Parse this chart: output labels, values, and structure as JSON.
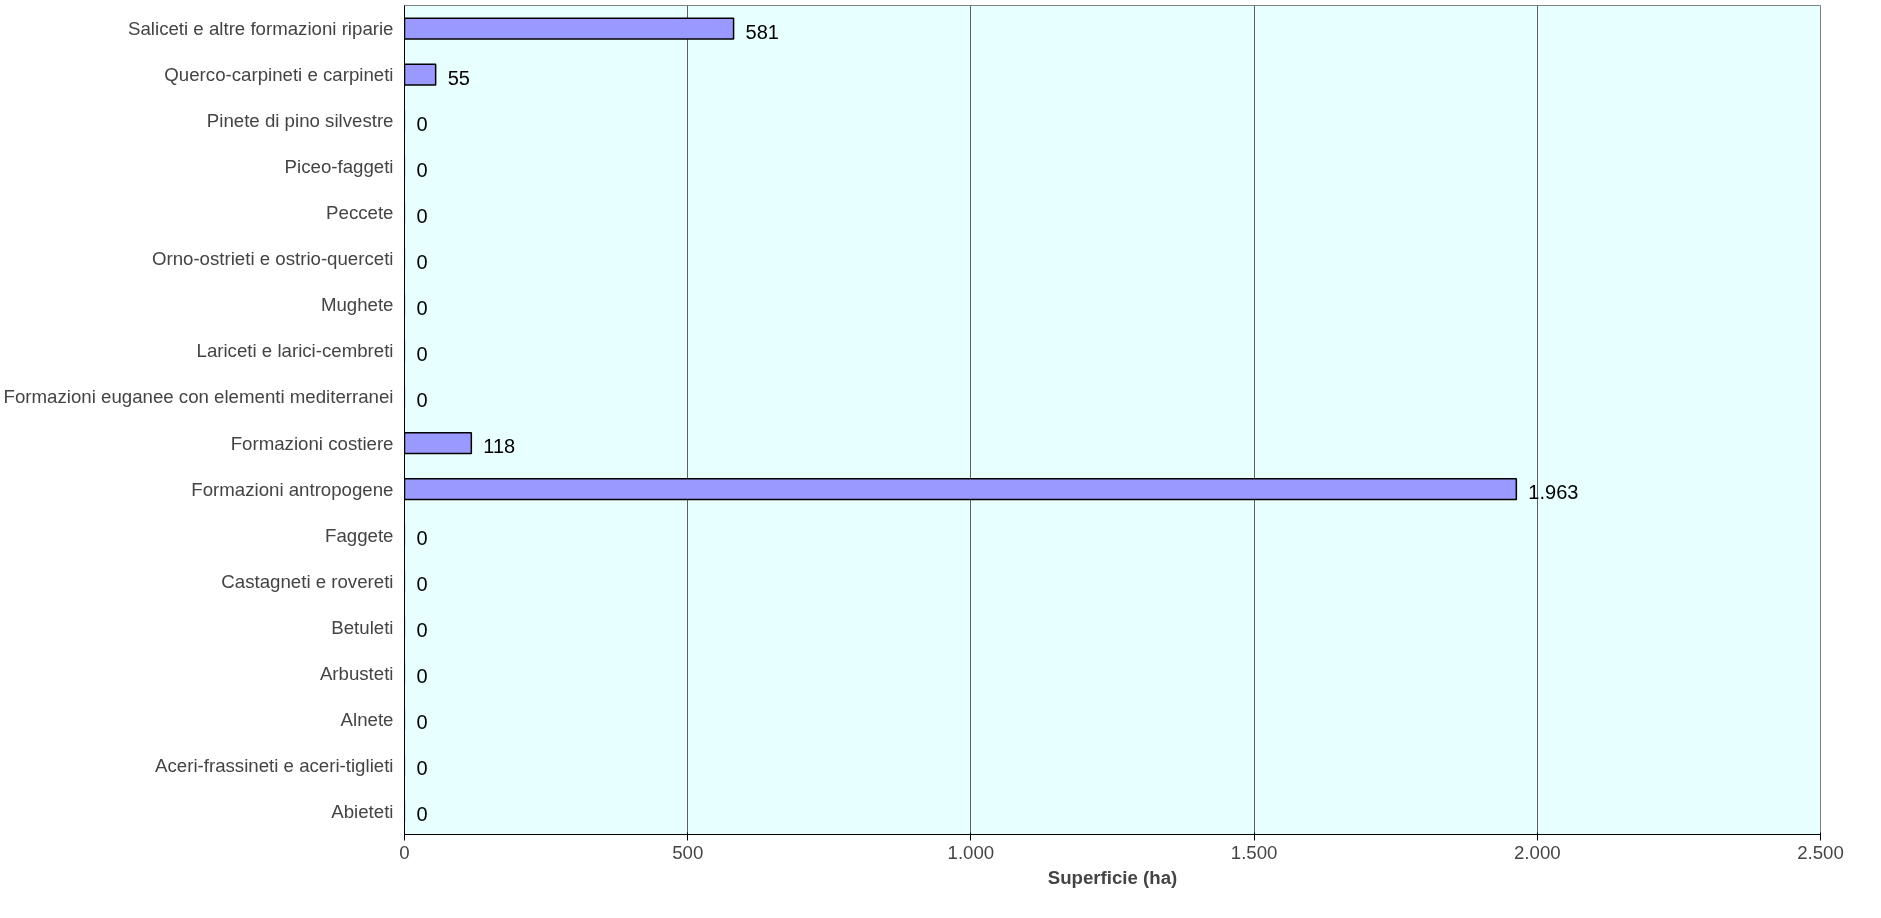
{
  "chart_data": {
    "type": "bar",
    "orientation": "horizontal",
    "xlabel": "Superficie (ha)",
    "categories": [
      "Saliceti e altre formazioni riparie",
      "Querco-carpineti e carpineti",
      "Pinete di pino silvestre",
      "Piceo-faggeti",
      "Peccete",
      "Orno-ostrieti e ostrio-querceti",
      "Mughete",
      "Lariceti e larici-cembreti",
      "Formazioni euganee con elementi mediterranei",
      "Formazioni costiere",
      "Formazioni antropogene",
      "Faggete",
      "Castagneti e rovereti",
      "Betuleti",
      "Arbusteti",
      "Alnete",
      "Aceri-frassineti e aceri-tiglieti",
      "Abieteti"
    ],
    "values": [
      581,
      55,
      0,
      0,
      0,
      0,
      0,
      0,
      0,
      118,
      1963,
      0,
      0,
      0,
      0,
      0,
      0,
      0
    ],
    "value_labels": [
      "581",
      "55",
      "0",
      "0",
      "0",
      "0",
      "0",
      "0",
      "0",
      "118",
      "1.963",
      "0",
      "0",
      "0",
      "0",
      "0",
      "0",
      "0"
    ],
    "color": "#9999ff",
    "xlim": [
      0,
      2500
    ],
    "xticks": [
      0,
      500,
      {
        "value": 1000,
        "label": "1.000"
      },
      {
        "value": 1500,
        "label": "1.500"
      },
      {
        "value": 2000,
        "label": "2.000"
      },
      {
        "value": 2500,
        "label": "2.500"
      }
    ],
    "grid": "x"
  }
}
